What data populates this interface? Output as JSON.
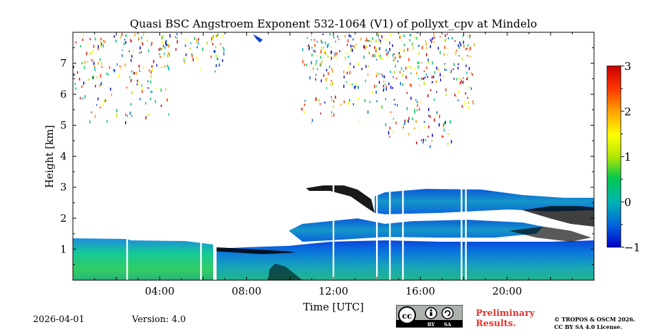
{
  "chart_data": {
    "type": "heatmap",
    "title": "Quasi BSC Angstroem Exponent 532-1064 (V1) of pollyxt_cpv at Mindelo",
    "xlabel": "Time [UTC]",
    "ylabel": "Height [km]",
    "x_range_hours": [
      0,
      24
    ],
    "y_range_km": [
      0,
      8
    ],
    "x_ticks": [
      {
        "value": 4,
        "label": "04:00"
      },
      {
        "value": 8,
        "label": "08:00"
      },
      {
        "value": 12,
        "label": "12:00"
      },
      {
        "value": 16,
        "label": "16:00"
      },
      {
        "value": 20,
        "label": "20:00"
      }
    ],
    "y_ticks": [
      {
        "value": 1,
        "label": "1"
      },
      {
        "value": 2,
        "label": "2"
      },
      {
        "value": 3,
        "label": "3"
      },
      {
        "value": 4,
        "label": "4"
      },
      {
        "value": 5,
        "label": "5"
      },
      {
        "value": 6,
        "label": "6"
      },
      {
        "value": 7,
        "label": "7"
      }
    ],
    "colorbar": {
      "range": [
        -1,
        3
      ],
      "colormap": [
        "#0000c8",
        "#0064dc",
        "#00b4b4",
        "#00c850",
        "#b4e600",
        "#ffff00",
        "#ffa000",
        "#ff3200",
        "#c80000"
      ],
      "ticks": [
        {
          "value": 3,
          "label": "3"
        },
        {
          "value": 2,
          "label": "2"
        },
        {
          "value": 1,
          "label": "1"
        },
        {
          "value": 0,
          "label": "0"
        },
        {
          "value": -1,
          "label": "−1"
        }
      ]
    },
    "layers": [
      {
        "name": "boundary-layer",
        "t_start": 0,
        "t_end": 24,
        "h_base": 0,
        "h_top_start": 1.35,
        "h_top_end": 1.2,
        "value_low": 0.5,
        "value_high": -0.3
      },
      {
        "name": "elevated-aerosol-layer",
        "t_start": 10.5,
        "t_end": 24,
        "h_base": 1.5,
        "h_top": 3.0,
        "value": -0.5
      }
    ],
    "data_gaps_hours": [
      2.5,
      5.9,
      6.5,
      12.0,
      14.0,
      14.6,
      15.2,
      17.9,
      18.1
    ]
  },
  "footer": {
    "date": "2026-04-01",
    "version": "Version: 4.0",
    "preliminary_line1": "Preliminary",
    "preliminary_line2": "Results.",
    "copyright_line1": "© TROPOS & OSCM 2026.",
    "copyright_line2": "CC BY SA 4.0 License."
  },
  "license_badge": {
    "cc": "cc",
    "by": "BY",
    "sa": "SA"
  }
}
